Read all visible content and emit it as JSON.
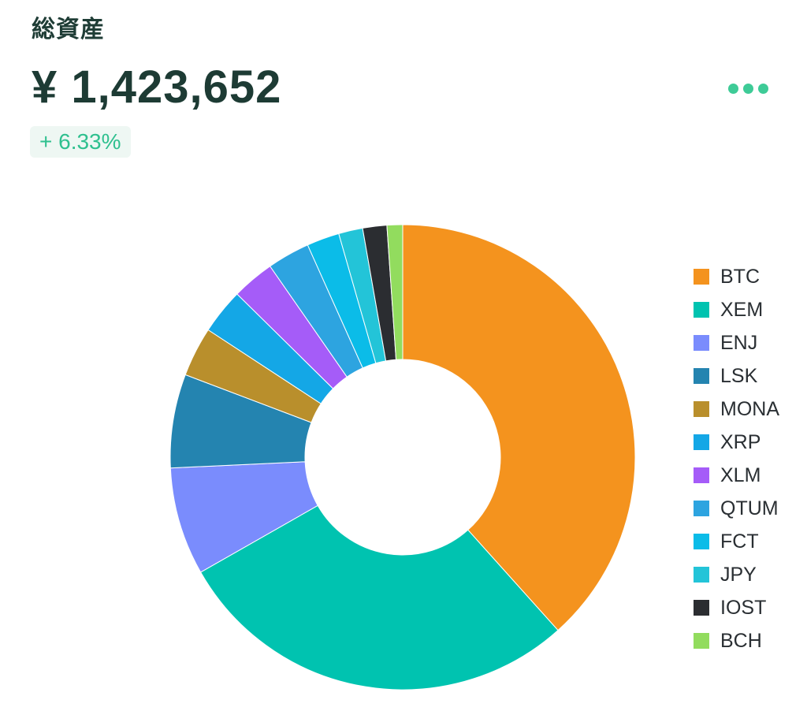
{
  "header": {
    "label": "総資産",
    "total": "¥ 1,423,652",
    "change": "+ 6.33%"
  },
  "menu": {
    "icon": "more-horizontal-icon",
    "color": "#3ecb97"
  },
  "chart_data": {
    "type": "pie",
    "donut": true,
    "legend_position": "right",
    "categories": [
      "BTC",
      "XEM",
      "ENJ",
      "LSK",
      "MONA",
      "XRP",
      "XLM",
      "QTUM",
      "FCT",
      "JPY",
      "IOST",
      "BCH"
    ],
    "values": [
      38.9,
      28.8,
      7.6,
      6.6,
      3.5,
      3.2,
      3.0,
      3.0,
      2.3,
      1.7,
      1.7,
      1.1
    ],
    "unit": "%",
    "colors": [
      "#f4931e",
      "#00c3b0",
      "#7a8cfd",
      "#2484b0",
      "#b98f2c",
      "#14a7e6",
      "#a55cf8",
      "#2da4e0",
      "#0bbce8",
      "#23c4d8",
      "#2b2d31",
      "#92dc5e"
    ]
  }
}
